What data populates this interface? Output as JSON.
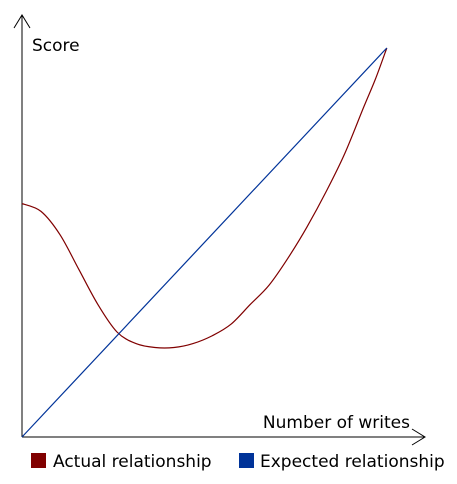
{
  "chart_data": {
    "type": "line",
    "title": "",
    "xlabel": "Number of writes",
    "ylabel": "Score",
    "xlim": [
      0,
      100
    ],
    "ylim": [
      0,
      100
    ],
    "grid": false,
    "legend_placement": "bottom",
    "series": [
      {
        "name": "Actual relationship",
        "color": "#800000",
        "points": [
          {
            "x": 0,
            "y": 60
          },
          {
            "x": 5,
            "y": 58
          },
          {
            "x": 10,
            "y": 52
          },
          {
            "x": 15,
            "y": 43
          },
          {
            "x": 20,
            "y": 34
          },
          {
            "x": 25,
            "y": 27
          },
          {
            "x": 30,
            "y": 24
          },
          {
            "x": 35,
            "y": 23
          },
          {
            "x": 40,
            "y": 23
          },
          {
            "x": 45,
            "y": 24
          },
          {
            "x": 50,
            "y": 26
          },
          {
            "x": 55,
            "y": 29
          },
          {
            "x": 60,
            "y": 34
          },
          {
            "x": 65,
            "y": 39
          },
          {
            "x": 70,
            "y": 46
          },
          {
            "x": 75,
            "y": 54
          },
          {
            "x": 80,
            "y": 63
          },
          {
            "x": 85,
            "y": 73
          },
          {
            "x": 90,
            "y": 85
          },
          {
            "x": 93,
            "y": 92
          },
          {
            "x": 96,
            "y": 100
          }
        ]
      },
      {
        "name": "Expected relationship",
        "color": "#003399",
        "points": [
          {
            "x": 0,
            "y": 0
          },
          {
            "x": 96,
            "y": 100
          }
        ]
      }
    ]
  }
}
